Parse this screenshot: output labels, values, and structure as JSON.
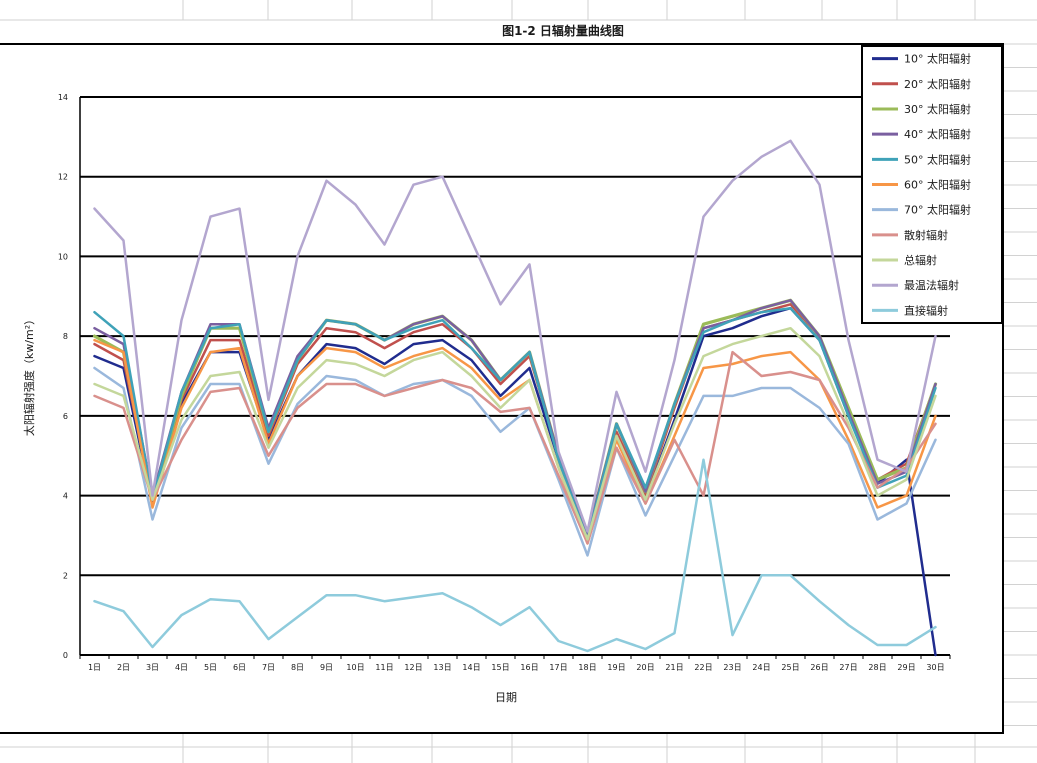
{
  "chart_data": {
    "type": "line",
    "title": "图1-2    日辐射量曲线图",
    "xlabel": "日期",
    "ylabel": "太阳辐射强度（kw/m²）",
    "x": [
      "1日",
      "2日",
      "3日",
      "4日",
      "5日",
      "6日",
      "7日",
      "8日",
      "9日",
      "10日",
      "11日",
      "12日",
      "13日",
      "14日",
      "15日",
      "16日",
      "17日",
      "18日",
      "19日",
      "20日",
      "21日",
      "22日",
      "23日",
      "24日",
      "25日",
      "26日",
      "27日",
      "28日",
      "29日",
      "30日"
    ],
    "yticks": [
      0,
      2,
      4,
      6,
      8,
      10,
      12,
      14
    ],
    "ylim": [
      0,
      14
    ],
    "grid": "horizontal",
    "legend": "top-right",
    "series": [
      {
        "name": "10° 太阳辐射",
        "color": "#202c8e",
        "values": [
          7.5,
          7.2,
          3.8,
          6.3,
          7.6,
          7.6,
          5.4,
          7.0,
          7.8,
          7.7,
          7.3,
          7.8,
          7.9,
          7.4,
          6.5,
          7.2,
          4.9,
          2.9,
          5.5,
          3.9,
          5.9,
          8.0,
          8.2,
          8.5,
          8.7,
          7.9,
          6.0,
          4.3,
          4.9,
          0.0
        ]
      },
      {
        "name": "20° 太阳辐射",
        "color": "#c0504d",
        "values": [
          7.8,
          7.4,
          3.9,
          6.4,
          7.9,
          7.9,
          5.5,
          7.3,
          8.2,
          8.1,
          7.7,
          8.1,
          8.3,
          7.7,
          6.8,
          7.5,
          5.0,
          3.0,
          5.6,
          4.0,
          6.2,
          8.2,
          8.4,
          8.6,
          8.8,
          8.0,
          6.2,
          4.4,
          4.8,
          6.8
        ]
      },
      {
        "name": "30° 太阳辐射",
        "color": "#9bbb59",
        "values": [
          8.0,
          7.6,
          3.9,
          6.5,
          8.2,
          8.2,
          5.6,
          7.4,
          8.4,
          8.3,
          7.9,
          8.3,
          8.5,
          7.9,
          6.9,
          7.6,
          5.0,
          3.0,
          5.8,
          4.1,
          6.3,
          8.3,
          8.5,
          8.7,
          8.9,
          8.0,
          6.2,
          4.4,
          4.7,
          6.8
        ]
      },
      {
        "name": "40° 太阳辐射",
        "color": "#7a5fa0",
        "values": [
          8.2,
          7.8,
          4.0,
          6.6,
          8.3,
          8.3,
          5.7,
          7.5,
          8.4,
          8.3,
          7.9,
          8.3,
          8.5,
          7.9,
          6.9,
          7.6,
          5.0,
          3.0,
          5.8,
          4.1,
          6.3,
          8.2,
          8.4,
          8.7,
          8.9,
          8.0,
          6.1,
          4.3,
          4.6,
          6.8
        ]
      },
      {
        "name": "50° 太阳辐射",
        "color": "#3fa2b8",
        "values": [
          8.6,
          8.0,
          3.9,
          6.6,
          8.2,
          8.3,
          5.6,
          7.4,
          8.4,
          8.3,
          7.9,
          8.2,
          8.4,
          7.7,
          6.9,
          7.6,
          4.9,
          2.9,
          5.8,
          4.2,
          6.3,
          8.1,
          8.4,
          8.6,
          8.7,
          7.9,
          6.0,
          4.2,
          4.5,
          6.7
        ]
      },
      {
        "name": "60° 太阳辐射",
        "color": "#f79646",
        "values": [
          7.9,
          7.6,
          3.7,
          6.2,
          7.6,
          7.7,
          5.3,
          7.0,
          7.7,
          7.6,
          7.2,
          7.5,
          7.7,
          7.2,
          6.4,
          6.9,
          4.7,
          2.8,
          5.4,
          3.8,
          5.5,
          7.2,
          7.3,
          7.5,
          7.6,
          6.9,
          5.4,
          3.7,
          4.0,
          6.0
        ]
      },
      {
        "name": "70° 太阳辐射",
        "color": "#9ab8dc",
        "values": [
          7.2,
          6.7,
          3.4,
          5.7,
          6.8,
          6.8,
          4.8,
          6.3,
          7.0,
          6.9,
          6.5,
          6.8,
          6.9,
          6.5,
          5.6,
          6.2,
          4.4,
          2.5,
          5.2,
          3.5,
          5.0,
          6.5,
          6.5,
          6.7,
          6.7,
          6.2,
          5.3,
          3.4,
          3.8,
          5.4
        ]
      },
      {
        "name": "散射辐射",
        "color": "#d9908c",
        "values": [
          6.5,
          6.2,
          3.9,
          5.4,
          6.6,
          6.7,
          5.0,
          6.2,
          6.8,
          6.8,
          6.5,
          6.7,
          6.9,
          6.7,
          6.1,
          6.2,
          4.5,
          2.8,
          5.2,
          3.8,
          5.4,
          4.0,
          7.6,
          7.0,
          7.1,
          6.9,
          5.7,
          4.2,
          4.7,
          5.8
        ]
      },
      {
        "name": "总辐射",
        "color": "#c4d79b",
        "values": [
          6.8,
          6.5,
          3.9,
          5.9,
          7.0,
          7.1,
          5.2,
          6.7,
          7.4,
          7.3,
          7.0,
          7.4,
          7.6,
          7.0,
          6.2,
          6.9,
          4.7,
          2.9,
          5.5,
          3.9,
          5.8,
          7.5,
          7.8,
          8.0,
          8.2,
          7.5,
          5.8,
          4.0,
          4.4,
          6.5
        ]
      },
      {
        "name": "最温法辐射",
        "color": "#b3a6cf",
        "values": [
          11.2,
          10.4,
          4.0,
          8.4,
          11.0,
          11.2,
          6.4,
          10.0,
          11.9,
          11.3,
          10.3,
          11.8,
          12.0,
          10.4,
          8.8,
          9.8,
          5.1,
          3.1,
          6.6,
          4.6,
          7.4,
          11.0,
          11.9,
          12.5,
          12.9,
          11.8,
          7.9,
          4.9,
          4.6,
          8.0
        ]
      },
      {
        "name": "直接辐射",
        "color": "#8ecbdc",
        "values": [
          1.35,
          1.1,
          0.2,
          1.0,
          1.4,
          1.35,
          0.4,
          0.95,
          1.5,
          1.5,
          1.35,
          1.45,
          1.55,
          1.2,
          0.75,
          1.2,
          0.35,
          0.1,
          0.4,
          0.15,
          0.55,
          4.9,
          0.5,
          2.0,
          2.0,
          1.35,
          0.75,
          0.25,
          0.25,
          0.7
        ]
      }
    ]
  }
}
